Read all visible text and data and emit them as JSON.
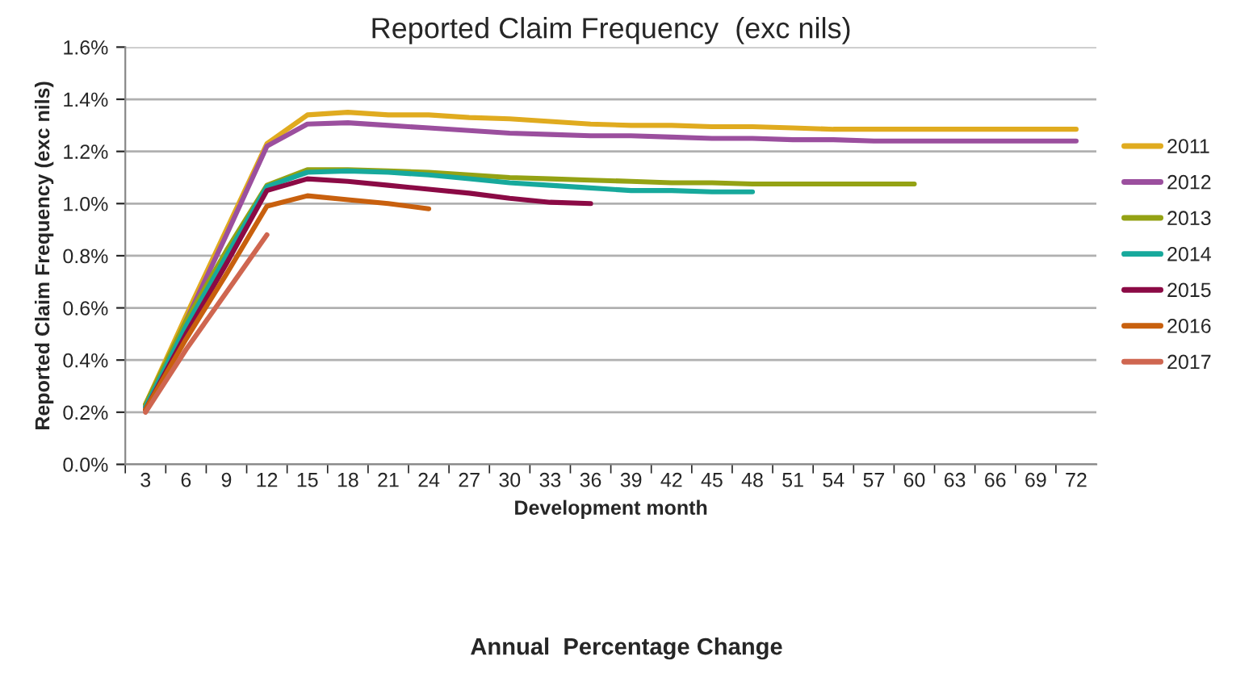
{
  "chart_data": {
    "type": "line",
    "title": "Reported Claim Frequency  (exc nils)",
    "xlabel": "Development month",
    "ylabel": "Reported Claim Frequency (exc nils)",
    "annotations": [
      "Annual  Percentage Change"
    ],
    "categories": [
      "3",
      "6",
      "9",
      "12",
      "15",
      "18",
      "21",
      "24",
      "27",
      "30",
      "33",
      "36",
      "39",
      "42",
      "45",
      "48",
      "51",
      "54",
      "57",
      "60",
      "63",
      "66",
      "69",
      "72"
    ],
    "series": [
      {
        "name": "2011",
        "color": "#e0ab1f",
        "values": [
          0.23,
          0.57,
          0.9,
          1.23,
          1.34,
          1.35,
          1.34,
          1.34,
          1.33,
          1.325,
          1.315,
          1.305,
          1.3,
          1.3,
          1.295,
          1.295,
          1.29,
          1.285,
          1.285,
          1.285,
          1.285,
          1.285,
          1.285,
          1.285
        ]
      },
      {
        "name": "2012",
        "color": "#9b4f9e",
        "values": [
          0.22,
          0.55,
          0.88,
          1.22,
          1.305,
          1.31,
          1.3,
          1.29,
          1.28,
          1.27,
          1.265,
          1.26,
          1.26,
          1.255,
          1.25,
          1.25,
          1.245,
          1.245,
          1.24,
          1.24,
          1.24,
          1.24,
          1.24,
          1.24
        ]
      },
      {
        "name": "2013",
        "color": "#94a214",
        "values": [
          0.23,
          0.55,
          0.82,
          1.07,
          1.13,
          1.13,
          1.125,
          1.12,
          1.11,
          1.1,
          1.095,
          1.09,
          1.085,
          1.08,
          1.08,
          1.075,
          1.075,
          1.075,
          1.075,
          1.075,
          null,
          null,
          null,
          null
        ]
      },
      {
        "name": "2014",
        "color": "#17a99c",
        "values": [
          0.22,
          0.53,
          0.8,
          1.065,
          1.12,
          1.125,
          1.12,
          1.11,
          1.095,
          1.08,
          1.07,
          1.06,
          1.05,
          1.05,
          1.045,
          1.045,
          null,
          null,
          null,
          null,
          null,
          null,
          null,
          null
        ]
      },
      {
        "name": "2015",
        "color": "#8b0a45",
        "values": [
          0.21,
          0.5,
          0.77,
          1.05,
          1.095,
          1.085,
          1.07,
          1.055,
          1.04,
          1.02,
          1.005,
          1.0,
          null,
          null,
          null,
          null,
          null,
          null,
          null,
          null,
          null,
          null,
          null,
          null
        ]
      },
      {
        "name": "2016",
        "color": "#c8600e",
        "values": [
          0.21,
          0.48,
          0.73,
          0.99,
          1.03,
          1.015,
          1.0,
          0.98,
          null,
          null,
          null,
          null,
          null,
          null,
          null,
          null,
          null,
          null,
          null,
          null,
          null,
          null,
          null,
          null
        ]
      },
      {
        "name": "2017",
        "color": "#cf6650",
        "values": [
          0.2,
          0.44,
          0.66,
          0.88,
          null,
          null,
          null,
          null,
          null,
          null,
          null,
          null,
          null,
          null,
          null,
          null,
          null,
          null,
          null,
          null,
          null,
          null,
          null,
          null
        ]
      }
    ],
    "ylim": [
      0,
      1.6
    ],
    "yticks": [
      {
        "value": 0,
        "label": "0.0%"
      },
      {
        "value": 0.2,
        "label": "0.2%"
      },
      {
        "value": 0.4,
        "label": "0.4%"
      },
      {
        "value": 0.6,
        "label": "0.6%"
      },
      {
        "value": 0.8,
        "label": "0.8%"
      },
      {
        "value": 1.0,
        "label": "1.0%"
      },
      {
        "value": 1.2,
        "label": "1.2%"
      },
      {
        "value": 1.4,
        "label": "1.4%"
      },
      {
        "value": 1.6,
        "label": "1.6%"
      }
    ],
    "grid": "y",
    "legend": "right",
    "marker": "none",
    "line_style": "solid"
  }
}
